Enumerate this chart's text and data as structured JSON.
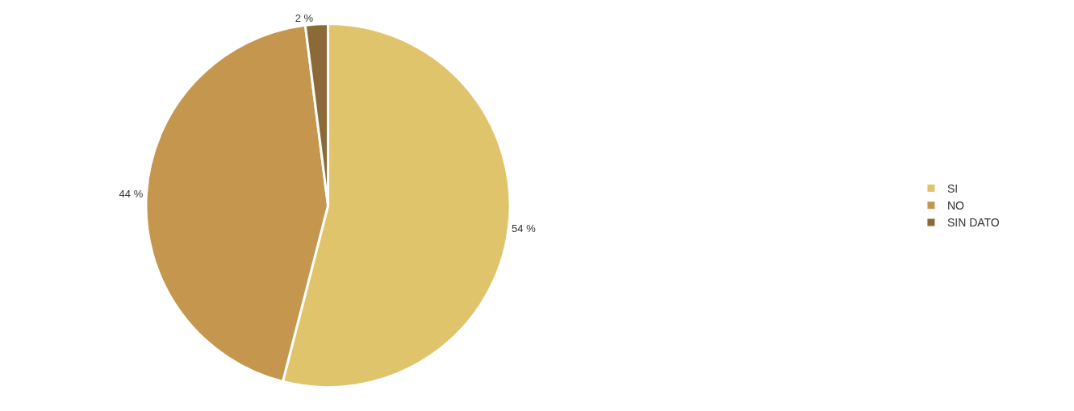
{
  "chart_data": {
    "type": "pie",
    "categories": [
      "SI",
      "NO",
      "SIN DATO"
    ],
    "values": [
      54,
      44,
      2
    ],
    "value_labels": [
      "54 %",
      "44 %",
      "2 %"
    ],
    "colors": [
      "#e0c46c",
      "#c4964e",
      "#8c6a38"
    ],
    "legend": "right"
  }
}
